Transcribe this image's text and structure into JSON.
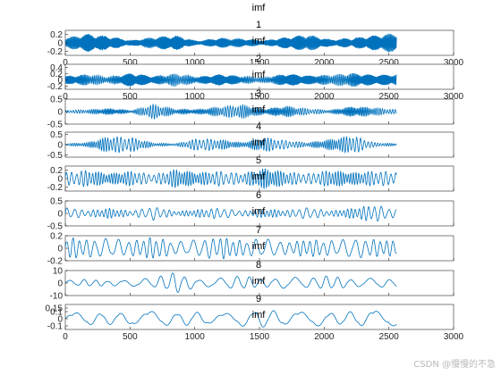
{
  "figure_title": "imf",
  "watermark": "CSDN @慢慢的不急",
  "line_color": "#0072BD",
  "chart_data": [
    {
      "type": "line",
      "title": "1",
      "ylabel_text": "imf",
      "xlim": [
        0,
        3000
      ],
      "ylim": [
        -0.3,
        0.3
      ],
      "yticks": [
        -0.2,
        0,
        0.2
      ],
      "xticks": [
        0,
        500,
        1000,
        1500,
        2000,
        2500,
        3000
      ],
      "show_xticklabels": true,
      "n_points": 2560,
      "amplitude_envelope": [
        0.12,
        0.22,
        0.16,
        0.06,
        0.14,
        0.18,
        0.05,
        0.12,
        0.1,
        0.06,
        0.14,
        0.2,
        0.08,
        0.12,
        0.18,
        0.24
      ],
      "cycles_per_sample": 0.22
    },
    {
      "type": "line",
      "title": "2",
      "ylabel_text": "imf",
      "xlim": [
        0,
        3000
      ],
      "ylim": [
        -0.3,
        0.5
      ],
      "yticks": [
        -0.2,
        0,
        0.2,
        0.4
      ],
      "xticks": [
        0,
        500,
        1000,
        1500,
        2000,
        2500,
        3000
      ],
      "show_xticklabels": true,
      "n_points": 2560,
      "amplitude_envelope": [
        0.12,
        0.18,
        0.1,
        0.22,
        0.12,
        0.2,
        0.1,
        0.18,
        0.12,
        0.08,
        0.2,
        0.14,
        0.16,
        0.22,
        0.16,
        0.18
      ],
      "cycles_per_sample": 0.14
    },
    {
      "type": "line",
      "title": "3",
      "ylabel_text": "imf",
      "xlim": [
        0,
        3000
      ],
      "ylim": [
        -0.5,
        0.5
      ],
      "yticks": [
        -0.5,
        0,
        0.5
      ],
      "xticks": [
        0,
        500,
        1000,
        1500,
        2000,
        2500,
        3000
      ],
      "show_xticklabels": false,
      "n_points": 2560,
      "amplitude_envelope": [
        0.06,
        0.08,
        0.12,
        0.05,
        0.3,
        0.1,
        0.08,
        0.2,
        0.28,
        0.1,
        0.22,
        0.12,
        0.06,
        0.2,
        0.16,
        0.08
      ],
      "cycles_per_sample": 0.09
    },
    {
      "type": "line",
      "title": "4",
      "ylabel_text": "imf",
      "xlim": [
        0,
        3000
      ],
      "ylim": [
        -0.6,
        0.6
      ],
      "yticks": [
        -0.5,
        0,
        0.5
      ],
      "xticks": [
        0,
        500,
        1000,
        1500,
        2000,
        2500,
        3000
      ],
      "show_xticklabels": false,
      "n_points": 2560,
      "amplitude_envelope": [
        0.05,
        0.1,
        0.4,
        0.35,
        0.08,
        0.05,
        0.3,
        0.25,
        0.1,
        0.35,
        0.2,
        0.1,
        0.25,
        0.45,
        0.1,
        0.05
      ],
      "cycles_per_sample": 0.06
    },
    {
      "type": "line",
      "title": "5",
      "ylabel_text": "imf",
      "xlim": [
        0,
        3000
      ],
      "ylim": [
        -0.3,
        0.3
      ],
      "yticks": [
        -0.2,
        0,
        0.2
      ],
      "xticks": [
        0,
        500,
        1000,
        1500,
        2000,
        2500,
        3000
      ],
      "show_xticklabels": false,
      "n_points": 2560,
      "amplitude_envelope": [
        0.15,
        0.2,
        0.12,
        0.18,
        0.1,
        0.22,
        0.14,
        0.18,
        0.12,
        0.24,
        0.16,
        0.12,
        0.2,
        0.14,
        0.18,
        0.16
      ],
      "cycles_per_sample": 0.045
    },
    {
      "type": "line",
      "title": "6",
      "ylabel_text": "imf",
      "xlim": [
        0,
        3000
      ],
      "ylim": [
        -0.5,
        0.5
      ],
      "yticks": [
        -0.5,
        0,
        0.5
      ],
      "xticks": [
        0,
        500,
        1000,
        1500,
        2000,
        2500,
        3000
      ],
      "show_xticklabels": false,
      "n_points": 2560,
      "amplitude_envelope": [
        0.25,
        0.12,
        0.2,
        0.1,
        0.28,
        0.08,
        0.15,
        0.22,
        0.1,
        0.18,
        0.12,
        0.24,
        0.1,
        0.2,
        0.35,
        0.15
      ],
      "cycles_per_sample": 0.03
    },
    {
      "type": "line",
      "title": "7",
      "ylabel_text": "imf",
      "xlim": [
        0,
        3000
      ],
      "ylim": [
        -0.2,
        0.2
      ],
      "yticks": [
        -0.2,
        0,
        0.2
      ],
      "xticks": [
        0,
        500,
        1000,
        1500,
        2000,
        2500,
        3000
      ],
      "show_xticklabels": false,
      "n_points": 2560,
      "amplitude_envelope": [
        0.18,
        0.14,
        0.16,
        0.12,
        0.18,
        0.1,
        0.14,
        0.18,
        0.12,
        0.16,
        0.1,
        0.14,
        0.12,
        0.16,
        0.14,
        0.12
      ],
      "cycles_per_sample": 0.018
    },
    {
      "type": "line",
      "title": "8",
      "ylabel_text": "imf",
      "xlim": [
        0,
        3000
      ],
      "ylim": [
        -10,
        10
      ],
      "yticks": [
        -10,
        0,
        10
      ],
      "xticks": [
        0,
        500,
        1000,
        1500,
        2000,
        2500,
        3000
      ],
      "show_xticklabels": false,
      "n_points": 2560,
      "amplitude_envelope": [
        2,
        3,
        2,
        3,
        4,
        9,
        3,
        4,
        6,
        3,
        5,
        4,
        6,
        3,
        4,
        3
      ],
      "cycles_per_sample": 0.01
    },
    {
      "type": "line",
      "title": "9",
      "ylabel_text": "imf",
      "xlim": [
        0,
        3000
      ],
      "ylim": [
        -0.15,
        0.2
      ],
      "yticks": [
        -0.1,
        0,
        0.1,
        0.15
      ],
      "xticks": [
        0,
        500,
        1000,
        1500,
        2000,
        2500,
        3000
      ],
      "show_xticklabels": true,
      "n_points": 2560,
      "amplitude_envelope": [
        0.09,
        0.1,
        0.08,
        0.1,
        0.12,
        0.09,
        0.1,
        0.08,
        0.11,
        0.13,
        0.1,
        0.12,
        0.09,
        0.1,
        0.14,
        0.1
      ],
      "cycles_per_sample": 0.006
    }
  ]
}
